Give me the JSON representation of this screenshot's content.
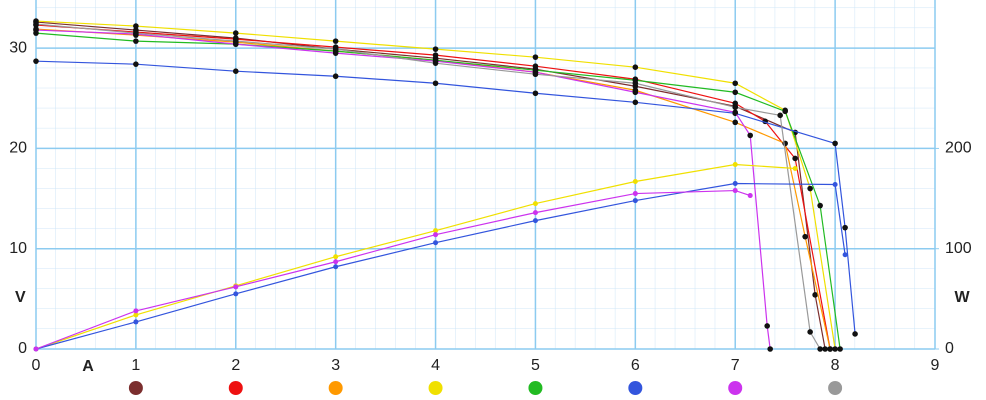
{
  "chart_data": {
    "type": "line",
    "x_label": "A",
    "y_label": "V",
    "y2_label": "W",
    "xlim": [
      0,
      9
    ],
    "xticks": [
      0,
      1,
      2,
      3,
      4,
      5,
      6,
      7,
      8,
      9
    ],
    "ylim": [
      0,
      34.8
    ],
    "yticks": [
      0,
      10,
      20,
      30
    ],
    "y2lim": [
      0,
      348
    ],
    "y2ticks": [
      0,
      100,
      200
    ],
    "grid": true,
    "series": [
      {
        "color": "#7b2e2e",
        "x": [
          0,
          1,
          2,
          3,
          4,
          5,
          6,
          7,
          7.6,
          7.8,
          7.9
        ],
        "values": [
          32.6,
          31.8,
          31.0,
          29.9,
          29.0,
          27.9,
          26.2,
          24.2,
          21.6,
          5.4,
          0
        ]
      },
      {
        "color": "#ee1111",
        "x": [
          0,
          1,
          2,
          3,
          4,
          5,
          6,
          7,
          7.3,
          7.6,
          7.95
        ],
        "values": [
          32.3,
          31.6,
          30.9,
          30.1,
          29.3,
          28.2,
          26.9,
          24.5,
          22.7,
          19,
          0
        ]
      },
      {
        "color": "#ff9900",
        "x": [
          0,
          1,
          2,
          3,
          4,
          5,
          6,
          7,
          7.5,
          7.7,
          7.95
        ],
        "values": [
          31.9,
          31.3,
          30.6,
          29.7,
          28.8,
          27.6,
          25.8,
          22.6,
          20.5,
          11.2,
          0
        ]
      },
      {
        "color": "#f0e000",
        "x": [
          0,
          1,
          2,
          3,
          4,
          5,
          6,
          7,
          7.5,
          7.75,
          8.0
        ],
        "values": [
          32.7,
          32.2,
          31.5,
          30.7,
          29.9,
          29.1,
          28.1,
          26.5,
          23.8,
          16,
          0
        ]
      },
      {
        "color": "#22bb22",
        "x": [
          0,
          1,
          2,
          3,
          4,
          5,
          6,
          7,
          7.5,
          7.85,
          8.05
        ],
        "values": [
          31.5,
          30.7,
          30.4,
          29.7,
          28.8,
          27.8,
          26.8,
          25.6,
          23.7,
          14.3,
          0
        ]
      },
      {
        "color": "#3355dd",
        "x": [
          0,
          1,
          2,
          3,
          4,
          5,
          6,
          7,
          8,
          8.1,
          8.2
        ],
        "values": [
          28.7,
          28.4,
          27.7,
          27.2,
          26.5,
          25.5,
          24.6,
          23.5,
          20.5,
          12.1,
          1.5
        ]
      },
      {
        "color": "#cc33ee",
        "x": [
          0,
          1,
          2,
          3,
          4,
          5,
          6,
          7,
          7.15,
          7.32,
          7.35
        ],
        "values": [
          31.8,
          31.4,
          30.4,
          29.5,
          28.7,
          27.6,
          25.6,
          23.6,
          21.3,
          2.3,
          0
        ]
      },
      {
        "color": "#999999",
        "x": [
          0,
          1,
          2,
          3,
          4,
          5,
          6,
          7,
          7.45,
          7.75,
          7.85
        ],
        "values": [
          32.4,
          31.5,
          30.7,
          29.9,
          28.5,
          27.4,
          26.5,
          24.1,
          23.3,
          1.7,
          0
        ]
      },
      {
        "color": "#f0e000",
        "axis": "y2",
        "x": [
          0,
          1,
          2,
          3,
          4,
          5,
          6,
          7,
          7.6
        ],
        "values": [
          0,
          34,
          63,
          92,
          118,
          145,
          167,
          184,
          180
        ]
      },
      {
        "color": "#3355dd",
        "axis": "y2",
        "x": [
          0,
          1,
          2,
          3,
          4,
          5,
          6,
          7,
          8,
          8.1
        ],
        "values": [
          0,
          27,
          55,
          82,
          106,
          128,
          148,
          165,
          164,
          94
        ]
      },
      {
        "color": "#cc33ee",
        "axis": "y2",
        "x": [
          0,
          1,
          2,
          3,
          4,
          5,
          6,
          7,
          7.15
        ],
        "values": [
          0,
          38,
          62,
          87,
          114,
          136,
          155,
          158,
          153
        ]
      }
    ]
  }
}
